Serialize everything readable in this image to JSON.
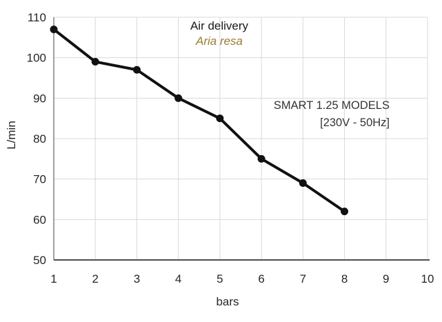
{
  "chart_data": {
    "type": "line",
    "title": "Air delivery",
    "subtitle": "Aria resa",
    "annotation": {
      "line1": "SMART 1.25 MODELS",
      "line2": "[230V - 50Hz]"
    },
    "xlabel": "bars",
    "ylabel": "L/min",
    "x": [
      1,
      2,
      3,
      4,
      5,
      6,
      7,
      8
    ],
    "values": [
      107,
      99,
      97,
      90,
      85,
      75,
      69,
      62
    ],
    "xlim": [
      1,
      10
    ],
    "ylim": [
      50,
      110
    ],
    "x_ticks": [
      1,
      2,
      3,
      4,
      5,
      6,
      7,
      8,
      9,
      10
    ],
    "y_ticks": [
      50,
      60,
      70,
      80,
      90,
      100,
      110
    ],
    "grid": true,
    "legend": "none",
    "colors": {
      "line": "#111111",
      "marker": "#111111",
      "grid": "#d9d9d9",
      "axis_left": "#808080",
      "axis_bottom": "#4d4d4d",
      "tick_label": "#262626",
      "title": "#1a1a1a",
      "subtitle": "#9a7b33",
      "annotation": "#333333"
    }
  }
}
